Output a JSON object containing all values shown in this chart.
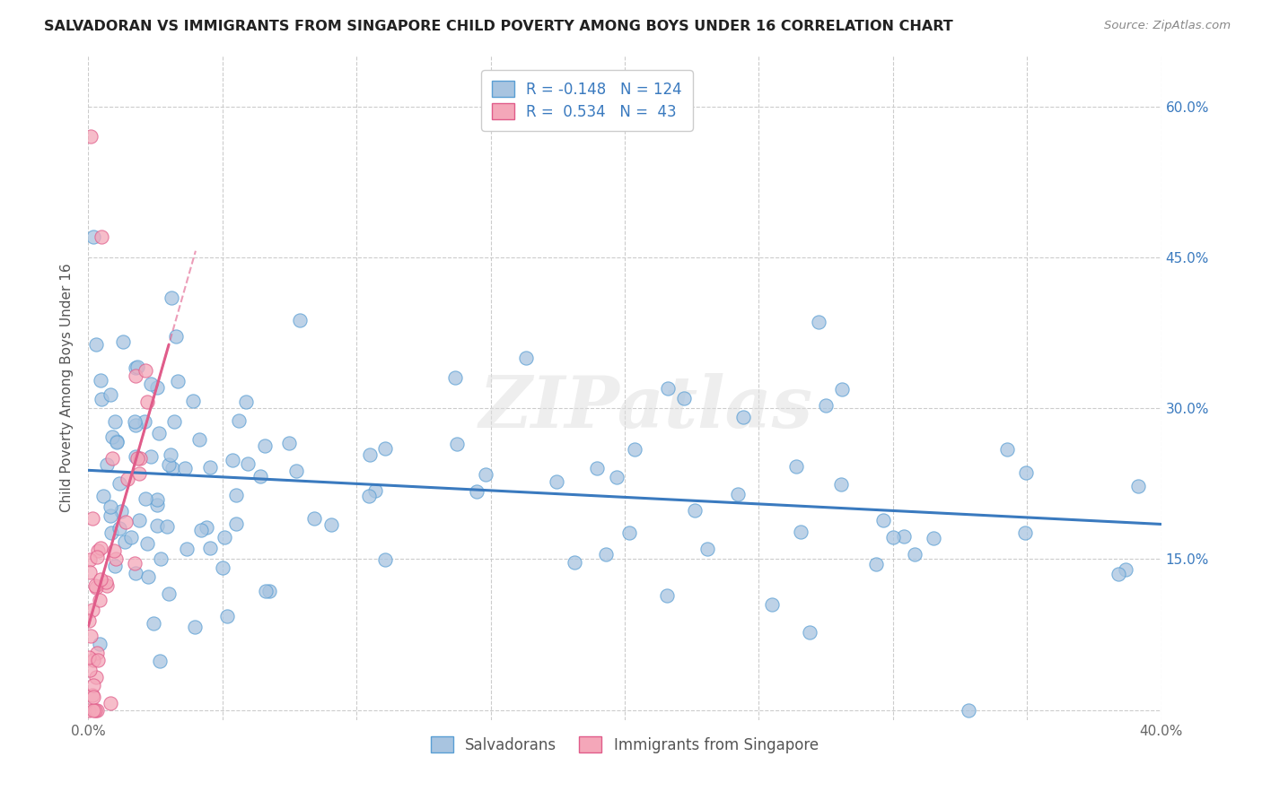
{
  "title": "SALVADORAN VS IMMIGRANTS FROM SINGAPORE CHILD POVERTY AMONG BOYS UNDER 16 CORRELATION CHART",
  "source": "Source: ZipAtlas.com",
  "ylabel": "Child Poverty Among Boys Under 16",
  "r_salvadoran": -0.148,
  "n_salvadoran": 124,
  "r_singapore": 0.534,
  "n_singapore": 43,
  "xlim": [
    0.0,
    0.4
  ],
  "ylim": [
    -0.01,
    0.65
  ],
  "yticks": [
    0.0,
    0.15,
    0.3,
    0.45,
    0.6
  ],
  "ytick_labels_right": [
    "",
    "15.0%",
    "30.0%",
    "45.0%",
    "60.0%"
  ],
  "xtick_positions": [
    0.0,
    0.05,
    0.1,
    0.15,
    0.2,
    0.25,
    0.3,
    0.35,
    0.4
  ],
  "xtick_labels": [
    "0.0%",
    "",
    "",
    "",
    "",
    "",
    "",
    "",
    "40.0%"
  ],
  "color_salvadoran_face": "#a8c4e0",
  "color_salvadoran_edge": "#5a9fd4",
  "color_singapore_face": "#f4a7b9",
  "color_singapore_edge": "#e05c8a",
  "line_color_salvadoran": "#3a7abf",
  "line_color_singapore": "#e05c8a",
  "background_color": "#ffffff",
  "grid_color": "#cccccc",
  "watermark_text": "ZIPatlas",
  "watermark_color": "#e0e0e0",
  "title_color": "#222222",
  "source_color": "#888888",
  "axis_label_color": "#555555",
  "tick_label_color": "#3a7abf",
  "legend_label_salv": "R = -0.148   N = 124",
  "legend_label_sing": "R =  0.534   N =  43",
  "bottom_legend_salv": "Salvadorans",
  "bottom_legend_sing": "Immigrants from Singapore"
}
